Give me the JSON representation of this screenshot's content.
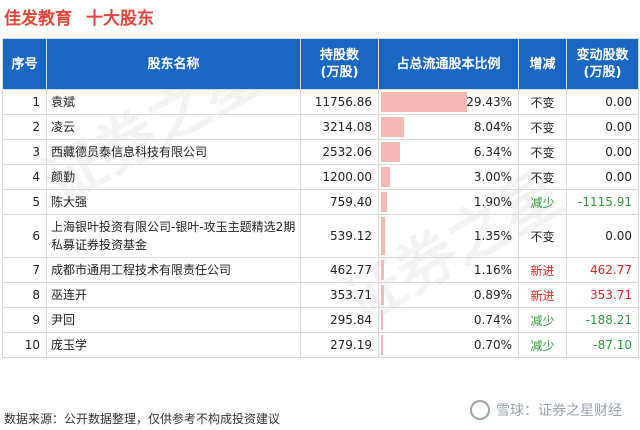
{
  "header": {
    "company": "佳发教育",
    "subtitle": "十大股东"
  },
  "table": {
    "columns": [
      "序号",
      "股东名称",
      "持股数\n(万股)",
      "占总流通股本比例",
      "增减",
      "变动股数\n(万股)"
    ],
    "rows": [
      {
        "seq": "1",
        "name": "袁斌",
        "shares": "11756.86",
        "pct": "29.43%",
        "pct_value": 29.43,
        "change": "不变",
        "change_type": "same",
        "delta": "0.00"
      },
      {
        "seq": "2",
        "name": "凌云",
        "shares": "3214.08",
        "pct": "8.04%",
        "pct_value": 8.04,
        "change": "不变",
        "change_type": "same",
        "delta": "0.00"
      },
      {
        "seq": "3",
        "name": "西藏德员泰信息科技有限公司",
        "shares": "2532.06",
        "pct": "6.34%",
        "pct_value": 6.34,
        "change": "不变",
        "change_type": "same",
        "delta": "0.00"
      },
      {
        "seq": "4",
        "name": "颜勤",
        "shares": "1200.00",
        "pct": "3.00%",
        "pct_value": 3.0,
        "change": "不变",
        "change_type": "same",
        "delta": "0.00"
      },
      {
        "seq": "5",
        "name": "陈大强",
        "shares": "759.40",
        "pct": "1.90%",
        "pct_value": 1.9,
        "change": "减少",
        "change_type": "down",
        "delta": "-1115.91"
      },
      {
        "seq": "6",
        "name": "上海银叶投资有限公司-银叶-攻玉主题精选2期私募证券投资基金",
        "shares": "539.12",
        "pct": "1.35%",
        "pct_value": 1.35,
        "change": "不变",
        "change_type": "same",
        "delta": "0.00"
      },
      {
        "seq": "7",
        "name": "成都市通用工程技术有限责任公司",
        "shares": "462.77",
        "pct": "1.16%",
        "pct_value": 1.16,
        "change": "新进",
        "change_type": "new",
        "delta": "462.77"
      },
      {
        "seq": "8",
        "name": "巫连开",
        "shares": "353.71",
        "pct": "0.89%",
        "pct_value": 0.89,
        "change": "新进",
        "change_type": "new",
        "delta": "353.71"
      },
      {
        "seq": "9",
        "name": "尹回",
        "shares": "295.84",
        "pct": "0.74%",
        "pct_value": 0.74,
        "change": "减少",
        "change_type": "down",
        "delta": "-188.21"
      },
      {
        "seq": "10",
        "name": "庞玉学",
        "shares": "279.19",
        "pct": "0.70%",
        "pct_value": 0.7,
        "change": "减少",
        "change_type": "down",
        "delta": "-87.10"
      }
    ]
  },
  "footer": {
    "source": "数据来源：公开数据整理，仅供参考不构成投资建议"
  },
  "watermark": {
    "logo_text": "雪球：证券之星财经",
    "bg_text": "证券之星"
  },
  "colors": {
    "title": "#e1473c",
    "header_bg": "#1a67c2",
    "bar": "#f7b9b8",
    "down": "#2e9b3c",
    "new": "#d9281f"
  }
}
